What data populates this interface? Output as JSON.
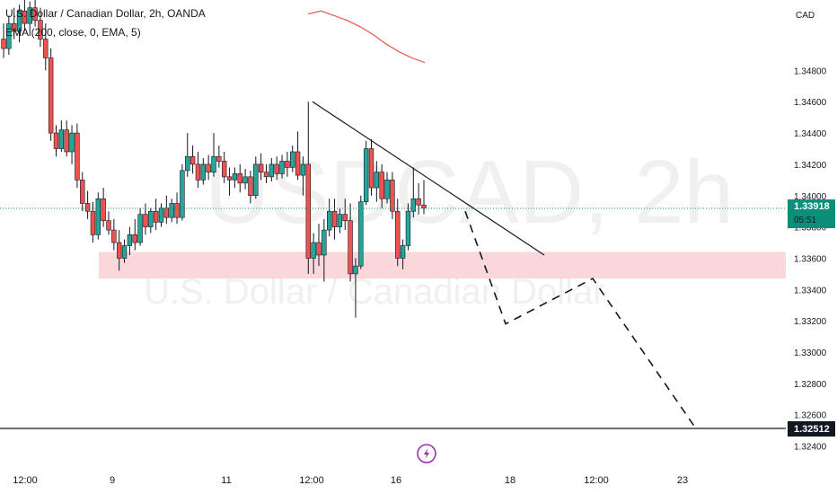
{
  "header": {
    "title": "U.S. Dollar / Canadian Dollar, 2h, OANDA",
    "indicator": "EMA (200, close, 0, EMA, 5)"
  },
  "watermark": {
    "symbol": "USDCAD, 2h",
    "name": "U.S. Dollar / Canadian Dollar"
  },
  "price_axis": {
    "currency": "CAD",
    "current_price": "1.33918",
    "countdown": "05:51",
    "target_price": "1.32512"
  },
  "colors": {
    "up": "#26a69a",
    "down": "#ef5350",
    "ema": "#f06060",
    "zone": "#f8c9cc",
    "current": "#0c8f7a"
  },
  "icons": {
    "bolt": "lightning-bolt-icon"
  },
  "chart_data": {
    "type": "candlestick",
    "title": "U.S. Dollar / Canadian Dollar, 2h, OANDA",
    "ylim": [
      1.3238,
      1.3525
    ],
    "y_ticks": [
      "1.34800",
      "1.34600",
      "1.34400",
      "1.34200",
      "1.34000",
      "1.33800",
      "1.33600",
      "1.33400",
      "1.33200",
      "1.33000",
      "1.32800",
      "1.32600",
      "1.32400"
    ],
    "x_ticks": [
      "12:00",
      "9",
      "11",
      "12:00",
      "16",
      "18",
      "12:00",
      "23"
    ],
    "candles": [
      [
        1.35,
        1.351,
        1.3488,
        1.3494
      ],
      [
        1.3494,
        1.3515,
        1.349,
        1.351
      ],
      [
        1.351,
        1.352,
        1.35,
        1.3505
      ],
      [
        1.3505,
        1.3522,
        1.3498,
        1.3518
      ],
      [
        1.3518,
        1.3525,
        1.3505,
        1.351
      ],
      [
        1.351,
        1.3524,
        1.3502,
        1.352
      ],
      [
        1.352,
        1.3525,
        1.3508,
        1.3512
      ],
      [
        1.3512,
        1.352,
        1.3495,
        1.35
      ],
      [
        1.35,
        1.351,
        1.348,
        1.3488
      ],
      [
        1.3488,
        1.3494,
        1.3435,
        1.344
      ],
      [
        1.344,
        1.3445,
        1.3425,
        1.343
      ],
      [
        1.343,
        1.3448,
        1.3428,
        1.3442
      ],
      [
        1.3442,
        1.3448,
        1.3425,
        1.3428
      ],
      [
        1.3428,
        1.3445,
        1.342,
        1.344
      ],
      [
        1.344,
        1.3446,
        1.3405,
        1.341
      ],
      [
        1.341,
        1.3415,
        1.339,
        1.3395
      ],
      [
        1.3395,
        1.3403,
        1.3385,
        1.339
      ],
      [
        1.339,
        1.3396,
        1.337,
        1.3375
      ],
      [
        1.3375,
        1.3402,
        1.3372,
        1.3398
      ],
      [
        1.3398,
        1.3405,
        1.338,
        1.3384
      ],
      [
        1.3384,
        1.339,
        1.3375,
        1.3378
      ],
      [
        1.3378,
        1.3385,
        1.3365,
        1.337
      ],
      [
        1.337,
        1.3378,
        1.3352,
        1.336
      ],
      [
        1.336,
        1.3372,
        1.3357,
        1.3368
      ],
      [
        1.3368,
        1.338,
        1.3362,
        1.3375
      ],
      [
        1.3375,
        1.3385,
        1.3365,
        1.337
      ],
      [
        1.337,
        1.3392,
        1.3368,
        1.3388
      ],
      [
        1.3388,
        1.3395,
        1.3375,
        1.338
      ],
      [
        1.338,
        1.3392,
        1.3376,
        1.339
      ],
      [
        1.339,
        1.3398,
        1.3378,
        1.3383
      ],
      [
        1.3383,
        1.3395,
        1.338,
        1.3392
      ],
      [
        1.3392,
        1.34,
        1.3382,
        1.3386
      ],
      [
        1.3386,
        1.3398,
        1.3383,
        1.3395
      ],
      [
        1.3395,
        1.3402,
        1.3382,
        1.3386
      ],
      [
        1.3386,
        1.342,
        1.3384,
        1.3416
      ],
      [
        1.3416,
        1.344,
        1.3412,
        1.3425
      ],
      [
        1.3425,
        1.3432,
        1.3414,
        1.342
      ],
      [
        1.342,
        1.3428,
        1.3405,
        1.341
      ],
      [
        1.341,
        1.3424,
        1.3407,
        1.342
      ],
      [
        1.342,
        1.3426,
        1.341,
        1.3415
      ],
      [
        1.3415,
        1.344,
        1.3412,
        1.3425
      ],
      [
        1.3425,
        1.3432,
        1.3418,
        1.3422
      ],
      [
        1.3422,
        1.3428,
        1.3408,
        1.3412
      ],
      [
        1.3412,
        1.3418,
        1.34,
        1.341
      ],
      [
        1.341,
        1.3418,
        1.3405,
        1.3414
      ],
      [
        1.3414,
        1.342,
        1.3402,
        1.3408
      ],
      [
        1.3408,
        1.3417,
        1.3404,
        1.3412
      ],
      [
        1.3412,
        1.3416,
        1.3395,
        1.34
      ],
      [
        1.34,
        1.3425,
        1.3398,
        1.342
      ],
      [
        1.342,
        1.3427,
        1.341,
        1.3415
      ],
      [
        1.3415,
        1.342,
        1.3408,
        1.3412
      ],
      [
        1.3412,
        1.3424,
        1.3409,
        1.342
      ],
      [
        1.342,
        1.3425,
        1.341,
        1.3414
      ],
      [
        1.3414,
        1.3426,
        1.3411,
        1.3422
      ],
      [
        1.3422,
        1.3428,
        1.3412,
        1.3418
      ],
      [
        1.3418,
        1.3432,
        1.3415,
        1.3428
      ],
      [
        1.3428,
        1.3441,
        1.341,
        1.3413
      ],
      [
        1.3413,
        1.3425,
        1.34,
        1.342
      ],
      [
        1.342,
        1.346,
        1.335,
        1.336
      ],
      [
        1.336,
        1.3376,
        1.335,
        1.337
      ],
      [
        1.337,
        1.3382,
        1.3355,
        1.3362
      ],
      [
        1.3362,
        1.3385,
        1.3345,
        1.3378
      ],
      [
        1.3378,
        1.3398,
        1.3374,
        1.339
      ],
      [
        1.339,
        1.3398,
        1.3372,
        1.338
      ],
      [
        1.338,
        1.3392,
        1.3376,
        1.3388
      ],
      [
        1.3388,
        1.3398,
        1.3378,
        1.3384
      ],
      [
        1.3384,
        1.3395,
        1.3345,
        1.335
      ],
      [
        1.335,
        1.336,
        1.3322,
        1.3355
      ],
      [
        1.3355,
        1.34,
        1.3353,
        1.3396
      ],
      [
        1.3396,
        1.3435,
        1.3394,
        1.343
      ],
      [
        1.343,
        1.3436,
        1.34,
        1.3405
      ],
      [
        1.3405,
        1.3422,
        1.3396,
        1.3415
      ],
      [
        1.3415,
        1.342,
        1.3392,
        1.3398
      ],
      [
        1.3398,
        1.3415,
        1.3395,
        1.341
      ],
      [
        1.341,
        1.3415,
        1.3385,
        1.339
      ],
      [
        1.339,
        1.3398,
        1.3355,
        1.336
      ],
      [
        1.336,
        1.3372,
        1.3353,
        1.3368
      ],
      [
        1.3368,
        1.3395,
        1.3365,
        1.339
      ],
      [
        1.339,
        1.3418,
        1.3386,
        1.3398
      ],
      [
        1.3398,
        1.3408,
        1.3388,
        1.3394
      ],
      [
        1.3394,
        1.341,
        1.3388,
        1.3392
      ]
    ],
    "ema": [
      [
        1.3516,
        1.3518,
        1.3515,
        1.3512,
        1.3508,
        1.3503,
        1.3497,
        1.3492,
        1.3488,
        1.3485
      ],
      "x_range"
    ],
    "zone": {
      "low": 1.3347,
      "high": 1.3364
    },
    "trendline": [
      1.346,
      1.3362
    ],
    "projection": [
      1.339,
      1.3318,
      1.3347,
      1.3251
    ],
    "horizontal_level": 1.32512
  }
}
